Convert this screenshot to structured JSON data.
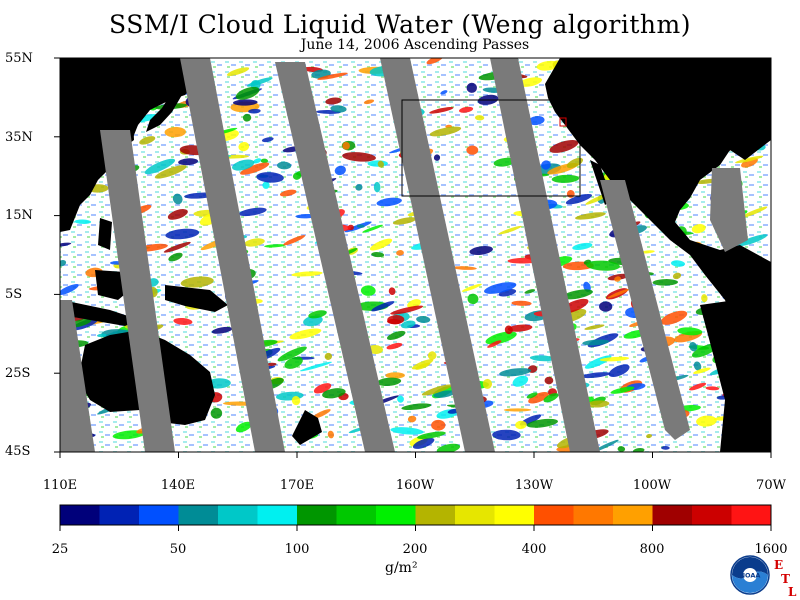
{
  "title": "SSM/I Cloud Liquid Water (Weng algorithm)",
  "subtitle": "June 14, 2006  Ascending Passes",
  "lat_labels": [
    "55N",
    "35N",
    "15N",
    "5S",
    "25S",
    "45S"
  ],
  "lon_labels": [
    "110E",
    "140E",
    "170E",
    "160W",
    "130W",
    "100W",
    "70W"
  ],
  "colorbar": {
    "tick_labels": [
      "25",
      "50",
      "100",
      "200",
      "400",
      "800",
      "1600"
    ],
    "units": "g/m²",
    "colors": [
      "#00007a",
      "#0022b4",
      "#0050ff",
      "#008c96",
      "#00c8c8",
      "#00f0f0",
      "#009600",
      "#00c800",
      "#00f000",
      "#b4b400",
      "#e6e600",
      "#ffff00",
      "#ff5000",
      "#ff7800",
      "#ffa000",
      "#a00000",
      "#cc0000",
      "#ff1414"
    ]
  },
  "colors": {
    "land": "#000000",
    "no_data_swath": "#7a7a7a",
    "ocean_clear": "#ffffff",
    "logo_red": "#d40000"
  },
  "logos": {
    "noaa": "NOAA",
    "etl": [
      "E",
      "T",
      "L"
    ]
  }
}
